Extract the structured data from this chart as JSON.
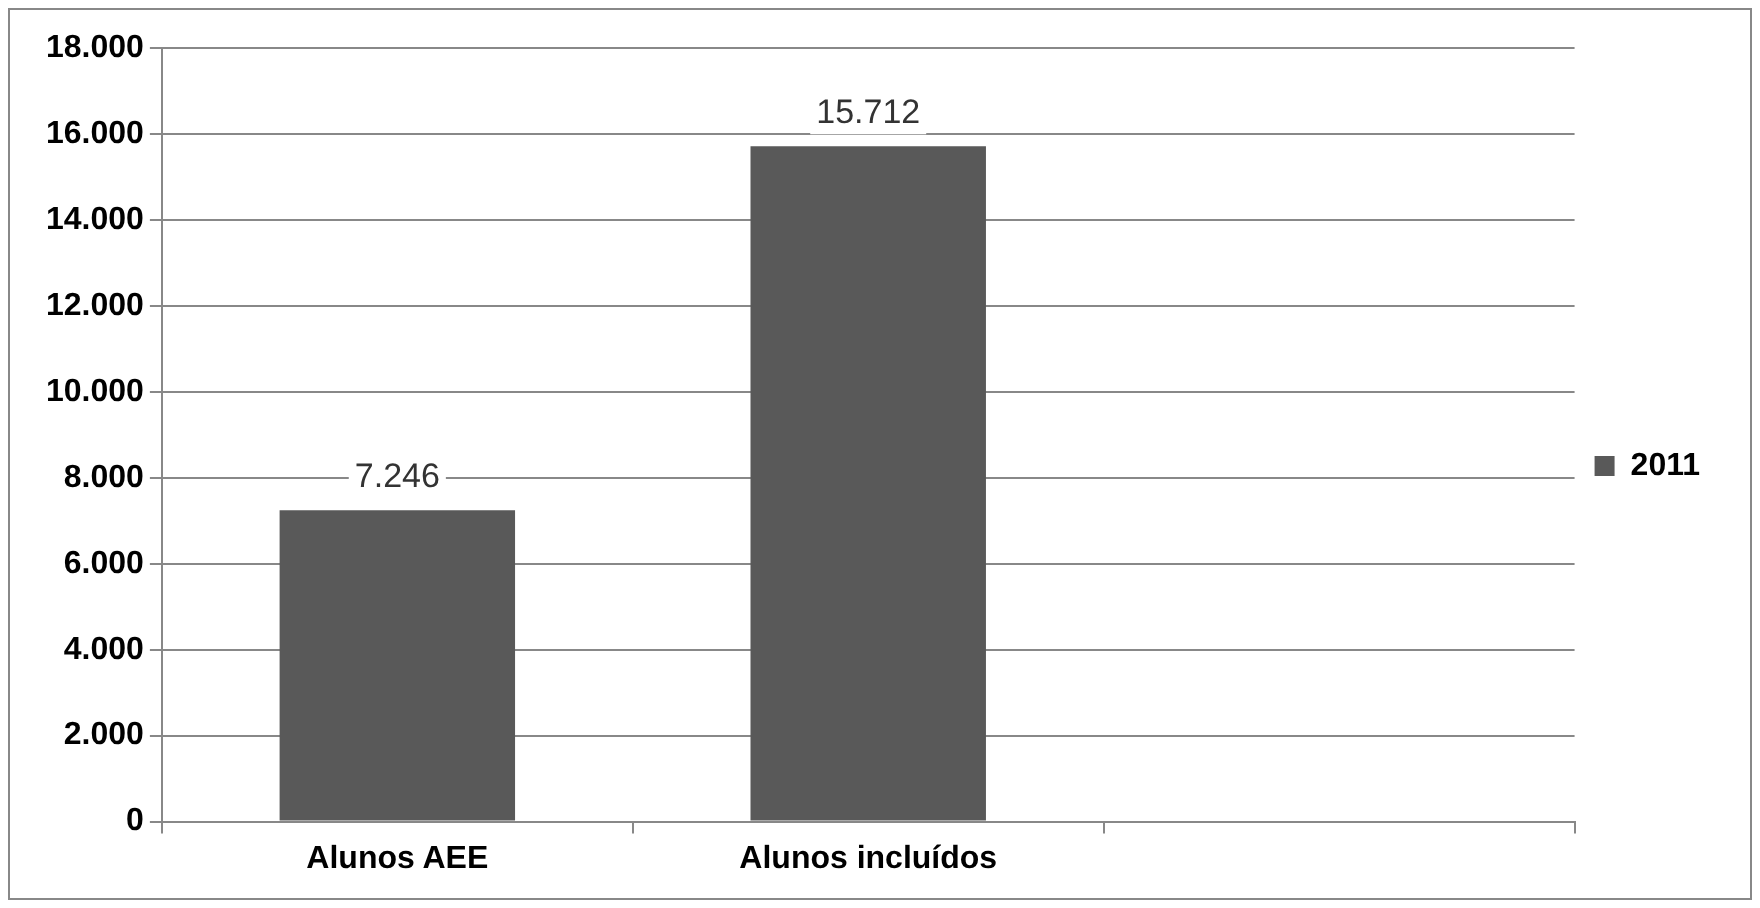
{
  "chart_data": {
    "type": "bar",
    "categories": [
      "Alunos AEE",
      "Alunos incluídos",
      null
    ],
    "series": [
      {
        "name": "2011",
        "color": "#595959",
        "values": [
          7246,
          15712,
          null
        ],
        "value_labels": [
          "7.246",
          "15.712",
          null
        ]
      }
    ],
    "ylim": [
      0,
      18000
    ],
    "yticks": [
      {
        "value": 0,
        "label": "0"
      },
      {
        "value": 2000,
        "label": "2.000"
      },
      {
        "value": 4000,
        "label": "4.000"
      },
      {
        "value": 6000,
        "label": "6.000"
      },
      {
        "value": 8000,
        "label": "8.000"
      },
      {
        "value": 10000,
        "label": "10.000"
      },
      {
        "value": 12000,
        "label": "12.000"
      },
      {
        "value": 14000,
        "label": "14.000"
      },
      {
        "value": 16000,
        "label": "16.000"
      },
      {
        "value": 18000,
        "label": "18.000"
      }
    ],
    "grid": "y",
    "legend": "right"
  }
}
